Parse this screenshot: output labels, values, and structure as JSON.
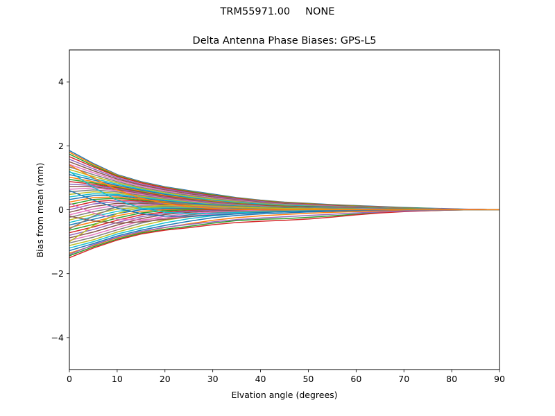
{
  "figure": {
    "suptitle_parts": [
      "TRM55971.00",
      "NONE"
    ]
  },
  "chart_data": {
    "type": "line",
    "title": "Delta Antenna Phase Biases: GPS-L5",
    "xlabel": "Elvation angle (degrees)",
    "ylabel": "Bias from mean (mm)",
    "xlim": [
      0,
      90
    ],
    "ylim": [
      -5,
      5
    ],
    "xticks": [
      0,
      10,
      20,
      30,
      40,
      50,
      60,
      70,
      80,
      90
    ],
    "yticks": [
      -4,
      -2,
      0,
      2,
      4
    ],
    "ytick_labels": [
      "−4",
      "−2",
      "0",
      "2",
      "4"
    ],
    "grid": false,
    "legend": "none",
    "x": [
      0,
      5,
      10,
      15,
      20,
      25,
      30,
      35,
      40,
      45,
      50,
      55,
      60,
      65,
      70,
      75,
      80,
      85,
      90
    ],
    "series_colors": [
      "#1f77b4",
      "#ff7f0e",
      "#2ca02c",
      "#d62728",
      "#9467bd",
      "#8c564b",
      "#e377c2",
      "#7f7f7f",
      "#bcbd22",
      "#17becf"
    ],
    "series": [
      {
        "values": [
          1.85,
          1.45,
          1.1,
          0.88,
          0.72,
          0.6,
          0.49,
          0.38,
          0.3,
          0.24,
          0.2,
          0.16,
          0.13,
          0.1,
          0.07,
          0.05,
          0.03,
          0.01,
          0.0
        ]
      },
      {
        "values": [
          1.8,
          1.42,
          1.08,
          0.86,
          0.7,
          0.58,
          0.47,
          0.37,
          0.29,
          0.23,
          0.19,
          0.15,
          0.12,
          0.09,
          0.06,
          0.04,
          0.02,
          0.01,
          0.0
        ]
      },
      {
        "values": [
          1.74,
          1.38,
          1.06,
          0.85,
          0.69,
          0.57,
          0.46,
          0.36,
          0.28,
          0.22,
          0.18,
          0.14,
          0.11,
          0.08,
          0.06,
          0.04,
          0.02,
          0.01,
          0.0
        ]
      },
      {
        "values": [
          1.66,
          1.34,
          1.04,
          0.84,
          0.68,
          0.55,
          0.44,
          0.35,
          0.27,
          0.21,
          0.17,
          0.13,
          0.1,
          0.08,
          0.05,
          0.03,
          0.02,
          0.01,
          0.0
        ]
      },
      {
        "values": [
          1.58,
          1.28,
          1.0,
          0.8,
          0.65,
          0.53,
          0.42,
          0.33,
          0.26,
          0.2,
          0.16,
          0.12,
          0.1,
          0.07,
          0.05,
          0.03,
          0.02,
          0.01,
          0.0
        ]
      },
      {
        "values": [
          1.5,
          1.22,
          0.96,
          0.77,
          0.62,
          0.5,
          0.4,
          0.31,
          0.24,
          0.19,
          0.15,
          0.12,
          0.09,
          0.07,
          0.05,
          0.03,
          0.02,
          0.01,
          0.0
        ]
      },
      {
        "values": [
          1.42,
          1.16,
          0.92,
          0.74,
          0.59,
          0.47,
          0.37,
          0.29,
          0.22,
          0.17,
          0.14,
          0.11,
          0.08,
          0.06,
          0.04,
          0.03,
          0.02,
          0.01,
          0.0
        ]
      },
      {
        "values": [
          1.34,
          1.1,
          0.88,
          0.7,
          0.56,
          0.45,
          0.35,
          0.27,
          0.21,
          0.16,
          0.13,
          0.1,
          0.08,
          0.06,
          0.04,
          0.02,
          0.01,
          0.0,
          0.0
        ]
      },
      {
        "values": [
          1.26,
          1.04,
          0.84,
          0.67,
          0.53,
          0.42,
          0.33,
          0.25,
          0.19,
          0.15,
          0.12,
          0.09,
          0.07,
          0.05,
          0.04,
          0.02,
          0.01,
          0.0,
          0.0
        ]
      },
      {
        "values": [
          1.18,
          0.98,
          0.8,
          0.64,
          0.5,
          0.39,
          0.3,
          0.23,
          0.18,
          0.14,
          0.11,
          0.08,
          0.06,
          0.05,
          0.03,
          0.02,
          0.01,
          0.0,
          0.0
        ]
      },
      {
        "values": [
          1.1,
          0.93,
          0.76,
          0.61,
          0.48,
          0.37,
          0.28,
          0.21,
          0.16,
          0.12,
          0.1,
          0.08,
          0.06,
          0.04,
          0.03,
          0.02,
          0.01,
          0.0,
          0.0
        ]
      },
      {
        "values": [
          1.02,
          0.88,
          0.73,
          0.58,
          0.45,
          0.35,
          0.27,
          0.2,
          0.15,
          0.12,
          0.09,
          0.07,
          0.05,
          0.04,
          0.03,
          0.02,
          0.01,
          0.0,
          0.0
        ]
      },
      {
        "values": [
          0.95,
          0.84,
          0.7,
          0.56,
          0.43,
          0.33,
          0.25,
          0.19,
          0.14,
          0.11,
          0.09,
          0.07,
          0.05,
          0.04,
          0.03,
          0.02,
          0.01,
          0.0,
          0.0
        ]
      },
      {
        "values": [
          0.88,
          0.8,
          0.68,
          0.54,
          0.42,
          0.32,
          0.24,
          0.18,
          0.13,
          0.1,
          0.08,
          0.06,
          0.05,
          0.03,
          0.02,
          0.01,
          0.01,
          0.0,
          0.0
        ]
      },
      {
        "values": [
          0.8,
          0.76,
          0.66,
          0.52,
          0.4,
          0.3,
          0.23,
          0.17,
          0.12,
          0.09,
          0.07,
          0.06,
          0.04,
          0.03,
          0.02,
          0.01,
          0.01,
          0.0,
          0.0
        ]
      },
      {
        "values": [
          0.72,
          0.72,
          0.63,
          0.5,
          0.38,
          0.29,
          0.21,
          0.16,
          0.12,
          0.09,
          0.07,
          0.05,
          0.04,
          0.03,
          0.02,
          0.01,
          0.0,
          0.0,
          0.0
        ]
      },
      {
        "values": [
          0.64,
          0.68,
          0.6,
          0.48,
          0.36,
          0.27,
          0.2,
          0.15,
          0.11,
          0.08,
          0.06,
          0.05,
          0.04,
          0.03,
          0.02,
          0.01,
          0.0,
          0.0,
          0.0
        ]
      },
      {
        "values": [
          0.56,
          0.62,
          0.56,
          0.45,
          0.34,
          0.25,
          0.19,
          0.14,
          0.1,
          0.08,
          0.06,
          0.05,
          0.03,
          0.02,
          0.02,
          0.01,
          0.0,
          0.0,
          0.0
        ]
      },
      {
        "values": [
          0.48,
          0.56,
          0.52,
          0.42,
          0.32,
          0.24,
          0.17,
          0.13,
          0.09,
          0.07,
          0.05,
          0.04,
          0.03,
          0.02,
          0.01,
          0.01,
          0.0,
          0.0,
          0.0
        ]
      },
      {
        "values": [
          0.4,
          0.5,
          0.48,
          0.39,
          0.3,
          0.22,
          0.16,
          0.12,
          0.09,
          0.06,
          0.05,
          0.04,
          0.03,
          0.02,
          0.01,
          0.01,
          0.0,
          0.0,
          0.0
        ]
      },
      {
        "values": [
          0.32,
          0.44,
          0.44,
          0.36,
          0.27,
          0.2,
          0.15,
          0.11,
          0.08,
          0.06,
          0.04,
          0.03,
          0.02,
          0.02,
          0.01,
          0.0,
          0.0,
          0.0,
          0.0
        ]
      },
      {
        "values": [
          0.24,
          0.38,
          0.4,
          0.33,
          0.25,
          0.18,
          0.13,
          0.1,
          0.07,
          0.05,
          0.04,
          0.03,
          0.02,
          0.01,
          0.01,
          0.0,
          0.0,
          0.0,
          0.0
        ]
      },
      {
        "values": [
          0.16,
          0.32,
          0.36,
          0.3,
          0.23,
          0.17,
          0.12,
          0.09,
          0.06,
          0.05,
          0.03,
          0.02,
          0.02,
          0.01,
          0.01,
          0.0,
          0.0,
          0.0,
          0.0
        ]
      },
      {
        "values": [
          0.08,
          0.25,
          0.31,
          0.27,
          0.2,
          0.15,
          0.11,
          0.08,
          0.06,
          0.04,
          0.03,
          0.02,
          0.01,
          0.01,
          0.0,
          0.0,
          0.0,
          0.0,
          0.0
        ]
      },
      {
        "values": [
          0.0,
          0.18,
          0.26,
          0.24,
          0.18,
          0.13,
          0.1,
          0.07,
          0.05,
          0.04,
          0.03,
          0.02,
          0.01,
          0.01,
          0.0,
          0.0,
          0.0,
          0.0,
          0.0
        ]
      },
      {
        "values": [
          -0.08,
          0.1,
          0.2,
          0.2,
          0.16,
          0.12,
          0.09,
          0.06,
          0.05,
          0.03,
          0.02,
          0.02,
          0.01,
          0.0,
          0.0,
          0.0,
          0.0,
          0.0,
          0.0
        ]
      },
      {
        "values": [
          -0.16,
          0.02,
          0.14,
          0.16,
          0.13,
          0.1,
          0.07,
          0.05,
          0.04,
          0.03,
          0.02,
          0.01,
          0.01,
          0.0,
          0.0,
          0.0,
          0.0,
          0.0,
          0.0
        ]
      },
      {
        "values": [
          -0.24,
          -0.06,
          0.08,
          0.12,
          0.11,
          0.08,
          0.06,
          0.04,
          0.03,
          0.02,
          0.02,
          0.01,
          0.01,
          0.0,
          0.0,
          0.0,
          0.0,
          0.0,
          0.0
        ]
      },
      {
        "values": [
          -0.32,
          -0.14,
          0.02,
          0.08,
          0.08,
          0.07,
          0.05,
          0.04,
          0.03,
          0.02,
          0.01,
          0.01,
          0.0,
          0.0,
          0.0,
          0.0,
          0.0,
          0.0,
          0.0
        ]
      },
      {
        "values": [
          -0.4,
          -0.22,
          -0.05,
          0.04,
          0.06,
          0.05,
          0.04,
          0.03,
          0.02,
          0.02,
          0.01,
          0.01,
          0.0,
          0.0,
          0.0,
          0.0,
          0.0,
          0.0,
          0.0
        ]
      },
      {
        "values": [
          -0.48,
          -0.3,
          -0.12,
          0.0,
          0.03,
          0.04,
          0.03,
          0.03,
          0.02,
          0.01,
          0.01,
          0.0,
          0.0,
          0.0,
          0.0,
          0.0,
          0.0,
          0.0,
          0.0
        ]
      },
      {
        "values": [
          -0.56,
          -0.38,
          -0.19,
          -0.05,
          0.0,
          0.02,
          0.02,
          0.02,
          0.02,
          0.01,
          0.01,
          0.0,
          0.0,
          0.0,
          0.0,
          0.0,
          0.0,
          0.0,
          0.0
        ]
      },
      {
        "values": [
          -0.64,
          -0.46,
          -0.26,
          -0.1,
          -0.03,
          0.0,
          0.01,
          0.01,
          0.01,
          0.01,
          0.0,
          0.0,
          0.0,
          0.0,
          0.0,
          0.0,
          0.0,
          0.0,
          0.0
        ]
      },
      {
        "values": [
          -0.72,
          -0.54,
          -0.33,
          -0.16,
          -0.07,
          -0.03,
          0.0,
          0.01,
          0.01,
          0.01,
          0.0,
          0.0,
          0.0,
          0.0,
          0.0,
          0.0,
          0.0,
          0.0,
          0.0
        ]
      },
      {
        "values": [
          -0.8,
          -0.62,
          -0.4,
          -0.22,
          -0.11,
          -0.05,
          -0.02,
          0.0,
          0.01,
          0.0,
          0.0,
          0.0,
          0.0,
          0.0,
          0.0,
          0.0,
          0.0,
          0.0,
          0.0
        ]
      },
      {
        "values": [
          -0.88,
          -0.7,
          -0.48,
          -0.28,
          -0.15,
          -0.08,
          -0.04,
          -0.02,
          -0.01,
          0.0,
          0.0,
          0.0,
          0.0,
          0.0,
          0.0,
          0.0,
          0.0,
          0.0,
          0.0
        ]
      },
      {
        "values": [
          -0.96,
          -0.78,
          -0.56,
          -0.35,
          -0.2,
          -0.12,
          -0.07,
          -0.04,
          -0.02,
          -0.01,
          0.0,
          0.0,
          0.0,
          0.0,
          0.0,
          0.0,
          0.0,
          0.0,
          0.0
        ]
      },
      {
        "values": [
          -1.04,
          -0.86,
          -0.63,
          -0.42,
          -0.26,
          -0.16,
          -0.1,
          -0.06,
          -0.04,
          -0.02,
          -0.01,
          0.0,
          0.0,
          0.0,
          0.0,
          0.0,
          0.0,
          0.0,
          0.0
        ]
      },
      {
        "values": [
          -1.12,
          -0.94,
          -0.7,
          -0.5,
          -0.33,
          -0.21,
          -0.14,
          -0.09,
          -0.06,
          -0.04,
          -0.02,
          -0.01,
          -0.01,
          0.0,
          0.0,
          0.0,
          0.0,
          0.0,
          0.0
        ]
      },
      {
        "values": [
          -1.2,
          -1.0,
          -0.76,
          -0.58,
          -0.41,
          -0.28,
          -0.19,
          -0.13,
          -0.09,
          -0.06,
          -0.04,
          -0.03,
          -0.02,
          -0.01,
          0.0,
          0.0,
          0.0,
          0.0,
          0.0
        ]
      },
      {
        "values": [
          -1.28,
          -1.06,
          -0.82,
          -0.64,
          -0.49,
          -0.36,
          -0.25,
          -0.18,
          -0.13,
          -0.1,
          -0.07,
          -0.05,
          -0.03,
          -0.02,
          -0.01,
          0.0,
          0.0,
          0.0,
          0.0
        ]
      },
      {
        "values": [
          -1.36,
          -1.12,
          -0.88,
          -0.7,
          -0.56,
          -0.44,
          -0.33,
          -0.25,
          -0.19,
          -0.15,
          -0.11,
          -0.08,
          -0.06,
          -0.04,
          -0.02,
          -0.01,
          0.0,
          0.0,
          0.0
        ]
      },
      {
        "values": [
          -1.44,
          -1.16,
          -0.92,
          -0.73,
          -0.61,
          -0.52,
          -0.42,
          -0.34,
          -0.3,
          -0.28,
          -0.24,
          -0.19,
          -0.14,
          -0.09,
          -0.05,
          -0.03,
          -0.01,
          0.0,
          0.0
        ]
      },
      {
        "values": [
          -1.5,
          -1.2,
          -0.95,
          -0.76,
          -0.64,
          -0.56,
          -0.47,
          -0.4,
          -0.36,
          -0.33,
          -0.29,
          -0.23,
          -0.16,
          -0.1,
          -0.06,
          -0.03,
          -0.01,
          0.0,
          0.0
        ]
      },
      {
        "values": [
          -1.4,
          -1.1,
          -0.86,
          -0.68,
          -0.55,
          -0.46,
          -0.38,
          -0.31,
          -0.26,
          -0.22,
          -0.18,
          -0.14,
          -0.1,
          -0.07,
          -0.04,
          -0.02,
          -0.01,
          0.0,
          0.0
        ]
      },
      {
        "values": [
          -0.2,
          -0.35,
          -0.42,
          -0.38,
          -0.3,
          -0.22,
          -0.16,
          -0.11,
          -0.08,
          -0.05,
          -0.04,
          -0.03,
          -0.02,
          -0.01,
          0.0,
          0.0,
          0.0,
          0.0,
          0.0
        ]
      },
      {
        "values": [
          0.2,
          -0.1,
          -0.3,
          -0.32,
          -0.26,
          -0.2,
          -0.14,
          -0.1,
          -0.07,
          -0.05,
          -0.03,
          -0.02,
          -0.01,
          -0.01,
          0.0,
          0.0,
          0.0,
          0.0,
          0.0
        ]
      },
      {
        "values": [
          -0.6,
          -0.2,
          0.1,
          0.22,
          0.22,
          0.18,
          0.13,
          0.09,
          0.06,
          0.04,
          0.03,
          0.02,
          0.01,
          0.01,
          0.0,
          0.0,
          0.0,
          0.0,
          0.0
        ]
      },
      {
        "values": [
          -1.0,
          -0.5,
          -0.12,
          0.08,
          0.14,
          0.14,
          0.11,
          0.08,
          0.06,
          0.04,
          0.03,
          0.02,
          0.01,
          0.0,
          0.0,
          0.0,
          0.0,
          0.0,
          0.0
        ]
      },
      {
        "values": [
          1.2,
          0.7,
          0.3,
          0.05,
          -0.08,
          -0.12,
          -0.11,
          -0.09,
          -0.07,
          -0.05,
          -0.03,
          -0.02,
          -0.01,
          0.0,
          0.0,
          0.0,
          0.0,
          0.0,
          0.0
        ]
      },
      {
        "values": [
          0.6,
          0.3,
          0.05,
          -0.12,
          -0.2,
          -0.2,
          -0.17,
          -0.13,
          -0.09,
          -0.06,
          -0.04,
          -0.03,
          -0.02,
          -0.01,
          0.0,
          0.0,
          0.0,
          0.0,
          0.0
        ]
      },
      {
        "values": [
          1.4,
          1.0,
          0.62,
          0.36,
          0.2,
          0.1,
          0.04,
          0.01,
          0.0,
          0.0,
          0.0,
          0.0,
          0.0,
          0.0,
          0.0,
          0.0,
          0.0,
          0.0,
          0.0
        ]
      }
    ]
  }
}
